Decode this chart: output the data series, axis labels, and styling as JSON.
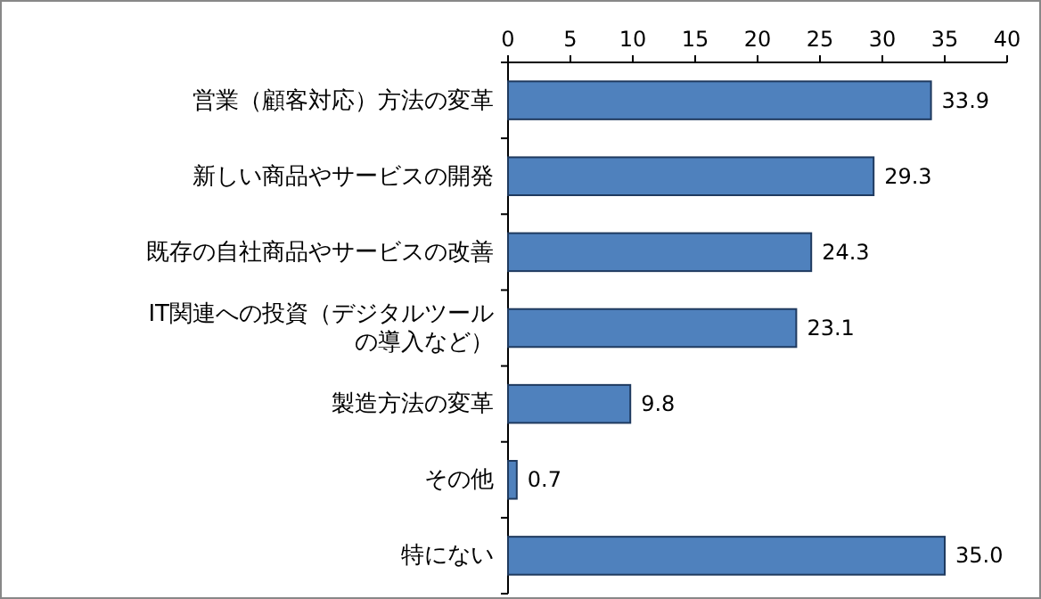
{
  "chart_data": {
    "type": "bar",
    "orientation": "horizontal",
    "categories": [
      "営業（顧客対応）方法の変革",
      "新しい商品やサービスの開発",
      "既存の自社商品やサービスの改善",
      "IT関連への投資（デジタルツールの導入など）",
      "製造方法の変革",
      "その他",
      "特にない"
    ],
    "values": [
      33.9,
      29.3,
      24.3,
      23.1,
      9.8,
      0.7,
      35.0
    ],
    "value_labels": [
      "33.9",
      "29.3",
      "24.3",
      "23.1",
      "9.8",
      "0.7",
      "35.0"
    ],
    "color": "#4f81bd",
    "xlim": [
      0,
      40
    ],
    "xticks": [
      0,
      5,
      10,
      15,
      20,
      25,
      30,
      35,
      40
    ],
    "grid": false
  }
}
